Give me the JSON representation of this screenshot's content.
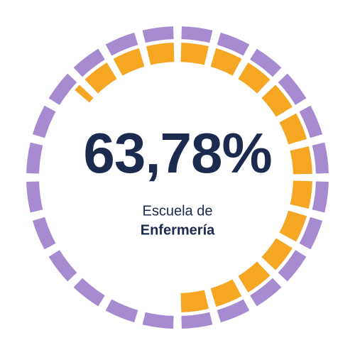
{
  "chart_data": {
    "type": "radial-gauge",
    "value": 63.78,
    "value_label": "63,78%",
    "range": [
      0,
      100
    ],
    "label_lines": [
      "Escuela de",
      "Enfermería"
    ],
    "value_color": "#f5a623",
    "track_color": "#a68bd0",
    "text_color": "#1c2a50"
  }
}
